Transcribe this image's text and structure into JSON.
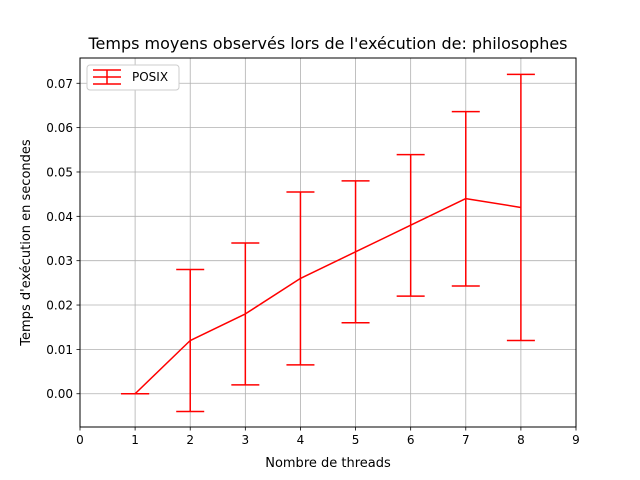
{
  "chart_data": {
    "type": "line",
    "title": "Temps moyens observés lors de l'exécution de: philosophes",
    "xlabel": "Nombre de threads",
    "ylabel": "Temps d'exécution en secondes",
    "xlim": [
      0,
      9
    ],
    "ylim": [
      -0.0075,
      0.0757
    ],
    "x_ticks": [
      0,
      1,
      2,
      3,
      4,
      5,
      6,
      7,
      8,
      9
    ],
    "x_tick_labels": [
      "0",
      "1",
      "2",
      "3",
      "4",
      "5",
      "6",
      "7",
      "8",
      "9"
    ],
    "y_ticks": [
      0.0,
      0.01,
      0.02,
      0.03,
      0.04,
      0.05,
      0.06,
      0.07
    ],
    "y_tick_labels": [
      "0.00",
      "0.01",
      "0.02",
      "0.03",
      "0.04",
      "0.05",
      "0.06",
      "0.07"
    ],
    "grid": true,
    "legend_position": "top-left",
    "series": [
      {
        "name": "POSIX",
        "color": "#ff0000",
        "x": [
          1,
          2,
          3,
          4,
          5,
          6,
          7,
          8
        ],
        "y": [
          0.0,
          0.012,
          0.018,
          0.026,
          0.032,
          0.038,
          0.044,
          0.042
        ],
        "err_low": [
          0.0,
          -0.004,
          0.002,
          0.0065,
          0.016,
          0.022,
          0.0243,
          0.012
        ],
        "err_high": [
          0.0,
          0.028,
          0.034,
          0.0455,
          0.048,
          0.0539,
          0.0636,
          0.072
        ]
      }
    ]
  }
}
